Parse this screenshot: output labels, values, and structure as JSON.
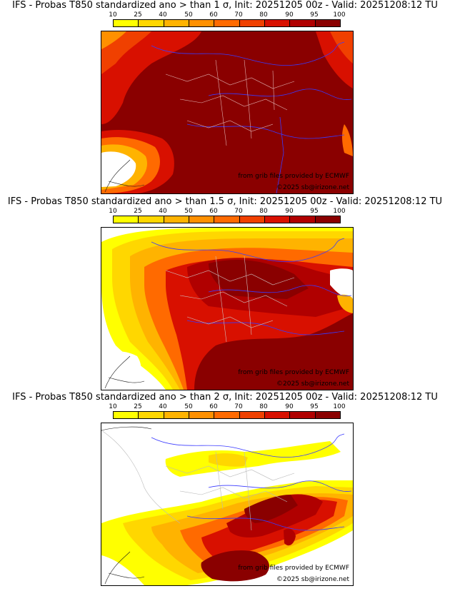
{
  "colorbar": {
    "ticks": [
      "10",
      "25",
      "40",
      "50",
      "60",
      "70",
      "80",
      "90",
      "95",
      "100"
    ],
    "colors": [
      "#ffff00",
      "#ffd700",
      "#ffb300",
      "#ff9000",
      "#ff6a00",
      "#f04000",
      "#d81000",
      "#b00000",
      "#8a0000"
    ]
  },
  "panels": [
    {
      "title": "IFS - Probas T850  standardized ano > than 1 σ, Init: 20251205 00z - Valid: 20251208:12 TU",
      "source": "from grib files provided by ECMWF",
      "copyright": "©2025 sb@irizone.net"
    },
    {
      "title": "IFS - Probas T850  standardized ano > than 1.5 σ, Init: 20251205 00z - Valid: 20251208:12 TU",
      "source": "from grib files provided by ECMWF",
      "copyright": "©2025 sb@irizone.net"
    },
    {
      "title": "IFS - Probas T850  standardized ano > than 2 σ, Init: 20251205 00z - Valid: 20251208:12 TU",
      "source": "from grib files provided by ECMWF",
      "copyright": "©2025 sb@irizone.net"
    }
  ]
}
